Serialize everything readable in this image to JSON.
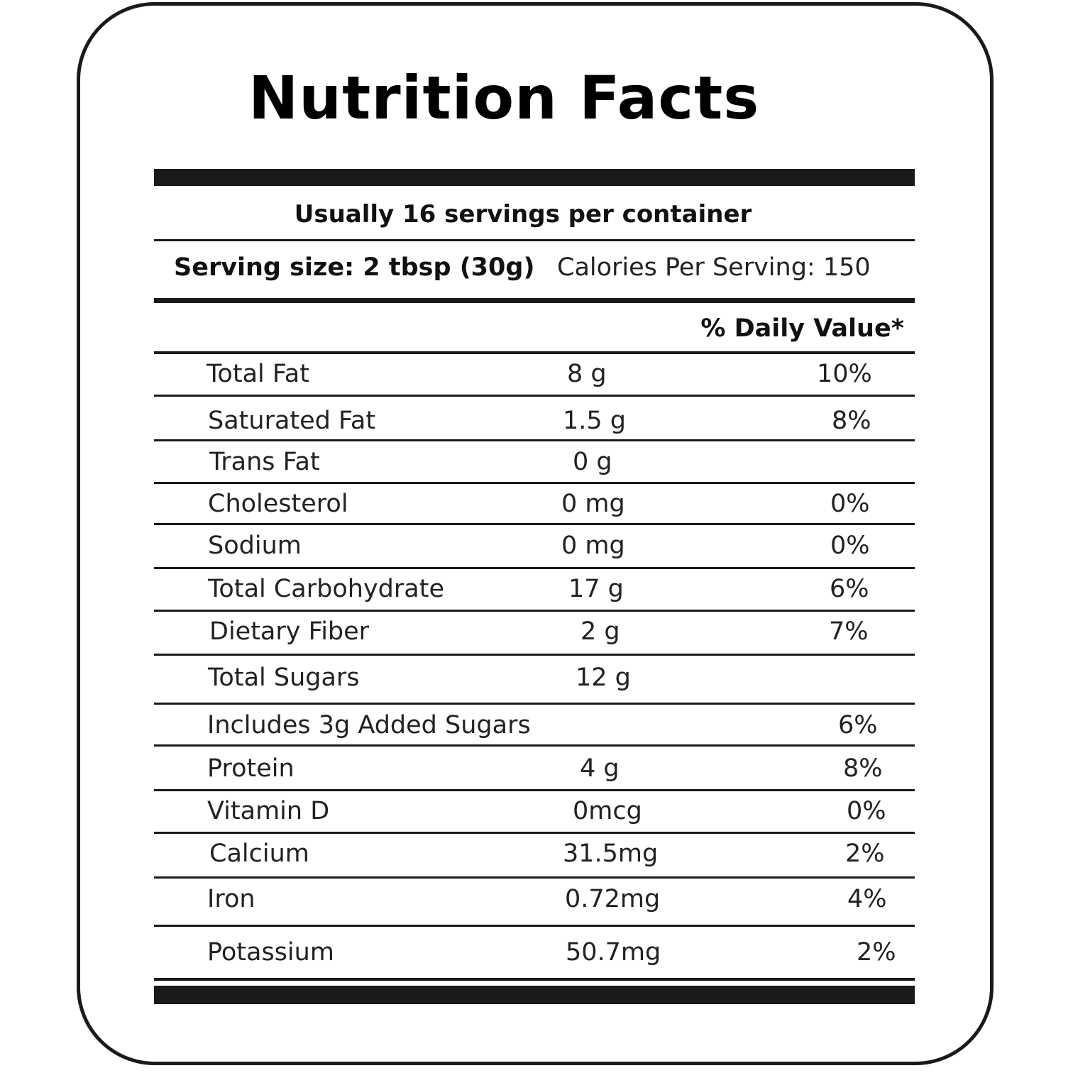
{
  "label": {
    "title": "Nutrition Facts",
    "servings_per_container": "Usually 16 servings per container",
    "serving_size": "Serving size: 2 tbsp (30g)",
    "calories_per_serving": "Calories Per Serving: 150",
    "daily_value_header": "% Daily Value*",
    "nutrients": [
      {
        "name": "Total Fat",
        "amount": "8 g",
        "daily_value": "10%"
      },
      {
        "name": "Saturated Fat",
        "amount": "1.5 g",
        "daily_value": "8%"
      },
      {
        "name": "Trans Fat",
        "amount": "0 g",
        "daily_value": ""
      },
      {
        "name": "Cholesterol",
        "amount": "0 mg",
        "daily_value": "0%"
      },
      {
        "name": "Sodium",
        "amount": "0 mg",
        "daily_value": "0%"
      },
      {
        "name": "Total Carbohydrate",
        "amount": "17 g",
        "daily_value": "6%"
      },
      {
        "name": "Dietary Fiber",
        "amount": "2 g",
        "daily_value": "7%"
      },
      {
        "name": "Total Sugars",
        "amount": "12 g",
        "daily_value": ""
      },
      {
        "name": "Includes 3g Added Sugars",
        "amount": "",
        "daily_value": "6%"
      },
      {
        "name": "Protein",
        "amount": "4 g",
        "daily_value": "8%"
      },
      {
        "name": "Vitamin D",
        "amount": "0mcg",
        "daily_value": "0%"
      },
      {
        "name": "Calcium",
        "amount": "31.5mg",
        "daily_value": "2%"
      },
      {
        "name": "Iron",
        "amount": "0.72mg",
        "daily_value": "4%"
      },
      {
        "name": "Potassium",
        "amount": "50.7mg",
        "daily_value": "2%"
      }
    ]
  }
}
